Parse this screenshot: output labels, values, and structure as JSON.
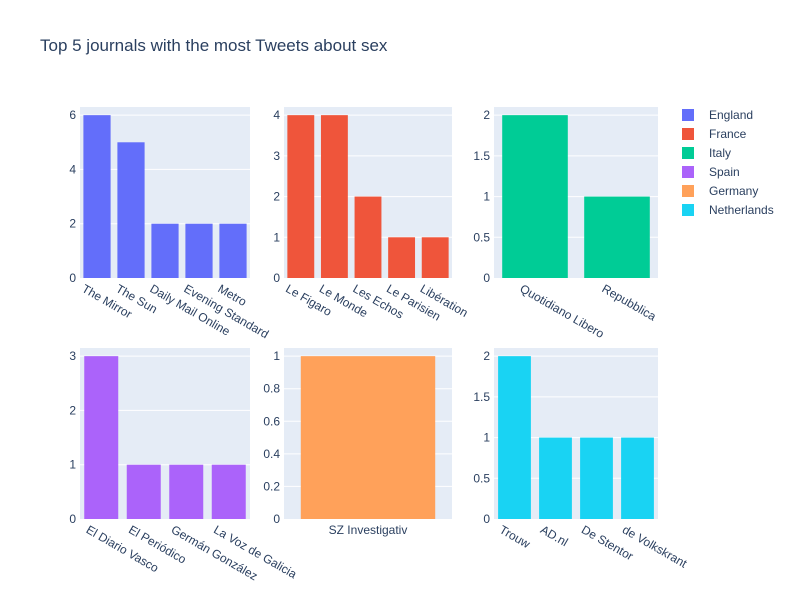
{
  "title": "Top 5 journals with the most Tweets about sex",
  "chart_data": {
    "type": "bar",
    "title": "Top 5 journals with the most Tweets about sex",
    "legend_position": "top-right",
    "grid": true,
    "subplots": [
      {
        "series": "England",
        "color": "#636efa",
        "categories": [
          "The Mirror",
          "The Sun",
          "Daily Mail Online",
          "Evening Standard",
          "Metro"
        ],
        "values": [
          6,
          5,
          2,
          2,
          2
        ],
        "ylim": [
          0,
          6.3
        ],
        "yticks": [
          0,
          2,
          4,
          6
        ],
        "ytick_labels": [
          "0",
          "2",
          "4",
          "6"
        ],
        "rotated_labels": true
      },
      {
        "series": "France",
        "color": "#ef553b",
        "categories": [
          "Le Figaro",
          "Le Monde",
          "Les Echos",
          "Le Parisien",
          "Libération"
        ],
        "values": [
          4,
          4,
          2,
          1,
          1
        ],
        "ylim": [
          0,
          4.2
        ],
        "yticks": [
          0,
          1,
          2,
          3,
          4
        ],
        "ytick_labels": [
          "0",
          "1",
          "2",
          "3",
          "4"
        ],
        "rotated_labels": true
      },
      {
        "series": "Italy",
        "color": "#00cc96",
        "categories": [
          "Quotidiano Libero",
          "Repubblica"
        ],
        "values": [
          2,
          1
        ],
        "ylim": [
          0,
          2.1
        ],
        "yticks": [
          0,
          0.5,
          1,
          1.5,
          2
        ],
        "ytick_labels": [
          "0",
          "0.5",
          "1",
          "1.5",
          "2"
        ],
        "rotated_labels": true
      },
      {
        "series": "Spain",
        "color": "#ab63fa",
        "categories": [
          "El Diario Vasco",
          "El Periódico",
          "Germán González",
          "La Voz de Galicia"
        ],
        "values": [
          3,
          1,
          1,
          1
        ],
        "ylim": [
          0,
          3.15
        ],
        "yticks": [
          0,
          1,
          2,
          3
        ],
        "ytick_labels": [
          "0",
          "1",
          "2",
          "3"
        ],
        "rotated_labels": true
      },
      {
        "series": "Germany",
        "color": "#ffa15a",
        "categories": [
          "SZ Investigativ"
        ],
        "values": [
          1
        ],
        "ylim": [
          0,
          1.05
        ],
        "yticks": [
          0,
          0.2,
          0.4,
          0.6,
          0.8,
          1
        ],
        "ytick_labels": [
          "0",
          "0.2",
          "0.4",
          "0.6",
          "0.8",
          "1"
        ],
        "rotated_labels": false
      },
      {
        "series": "Netherlands",
        "color": "#19d3f3",
        "categories": [
          "Trouw",
          "AD.nl",
          "De Stentor",
          "de Volkskrant"
        ],
        "values": [
          2,
          1,
          1,
          1
        ],
        "ylim": [
          0,
          2.1
        ],
        "yticks": [
          0,
          0.5,
          1,
          1.5,
          2
        ],
        "ytick_labels": [
          "0",
          "0.5",
          "1",
          "1.5",
          "2"
        ],
        "rotated_labels": true
      }
    ],
    "legend": [
      {
        "name": "England",
        "color": "#636efa"
      },
      {
        "name": "France",
        "color": "#ef553b"
      },
      {
        "name": "Italy",
        "color": "#00cc96"
      },
      {
        "name": "Spain",
        "color": "#ab63fa"
      },
      {
        "name": "Germany",
        "color": "#ffa15a"
      },
      {
        "name": "Netherlands",
        "color": "#19d3f3"
      }
    ]
  }
}
